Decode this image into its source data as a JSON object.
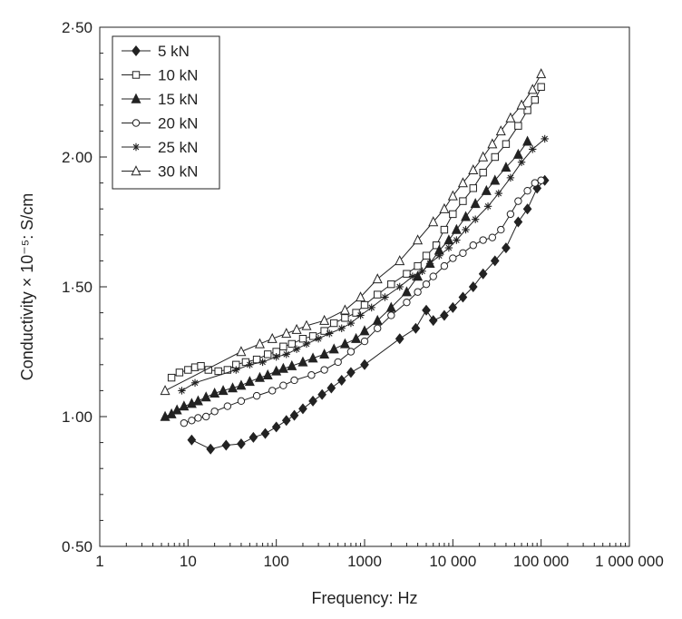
{
  "chart_data": {
    "type": "line",
    "xlabel": "Frequency: Hz",
    "ylabel": "Conductivity × 10⁻⁵: S/cm",
    "x_scale": "log",
    "xlim": [
      1,
      1000000
    ],
    "ylim": [
      0.5,
      2.5
    ],
    "x_ticks": [
      "1",
      "10",
      "100",
      "1000",
      "10 000",
      "100 000",
      "1 000 000"
    ],
    "y_ticks": [
      "0·50",
      "1·00",
      "1·50",
      "2·00",
      "2·50"
    ],
    "grid": false,
    "legend_position": "top-left",
    "series": [
      {
        "name": "5 kN",
        "marker": "diamond-filled",
        "x": [
          11,
          18,
          27,
          40,
          55,
          75,
          100,
          130,
          160,
          200,
          260,
          330,
          420,
          550,
          700,
          1000,
          2500,
          3800,
          5000,
          6000,
          8000,
          10000,
          13000,
          17000,
          22000,
          30000,
          40000,
          55000,
          70000,
          90000,
          110000
        ],
        "y": [
          0.91,
          0.875,
          0.89,
          0.895,
          0.92,
          0.935,
          0.96,
          0.985,
          1.005,
          1.03,
          1.06,
          1.085,
          1.11,
          1.14,
          1.17,
          1.2,
          1.3,
          1.34,
          1.41,
          1.37,
          1.39,
          1.42,
          1.46,
          1.5,
          1.55,
          1.6,
          1.65,
          1.75,
          1.8,
          1.88,
          1.91
        ]
      },
      {
        "name": "10 kN",
        "marker": "square-open",
        "x": [
          6.5,
          8,
          10,
          12,
          14,
          17,
          22,
          28,
          35,
          45,
          60,
          80,
          100,
          120,
          150,
          200,
          260,
          350,
          450,
          600,
          800,
          1000,
          1400,
          2000,
          3000,
          4000,
          5000,
          6500,
          8000,
          10000,
          13000,
          17000,
          22000,
          30000,
          40000,
          55000,
          70000,
          85000,
          100000
        ],
        "y": [
          1.15,
          1.17,
          1.18,
          1.19,
          1.195,
          1.18,
          1.175,
          1.18,
          1.2,
          1.21,
          1.22,
          1.24,
          1.25,
          1.27,
          1.28,
          1.3,
          1.31,
          1.33,
          1.36,
          1.38,
          1.4,
          1.43,
          1.47,
          1.51,
          1.55,
          1.58,
          1.62,
          1.66,
          1.72,
          1.78,
          1.83,
          1.88,
          1.94,
          2.0,
          2.05,
          2.12,
          2.18,
          2.22,
          2.27
        ]
      },
      {
        "name": "15 kN",
        "marker": "triangle-filled",
        "x": [
          5.5,
          6.5,
          7.5,
          9,
          11,
          13,
          16,
          20,
          25,
          32,
          40,
          50,
          65,
          80,
          100,
          120,
          150,
          200,
          260,
          350,
          450,
          600,
          800,
          1000,
          1400,
          2000,
          3000,
          4000,
          5500,
          7000,
          9000,
          11000,
          14000,
          18000,
          24000,
          30000,
          40000,
          55000,
          70000
        ],
        "y": [
          1.0,
          1.01,
          1.025,
          1.04,
          1.05,
          1.06,
          1.075,
          1.09,
          1.1,
          1.11,
          1.12,
          1.135,
          1.15,
          1.16,
          1.175,
          1.185,
          1.195,
          1.21,
          1.225,
          1.24,
          1.26,
          1.28,
          1.3,
          1.33,
          1.37,
          1.42,
          1.48,
          1.54,
          1.59,
          1.64,
          1.68,
          1.72,
          1.77,
          1.82,
          1.87,
          1.91,
          1.96,
          2.01,
          2.06
        ]
      },
      {
        "name": "20 kN",
        "marker": "circle-open",
        "x": [
          9,
          11,
          13,
          16,
          20,
          28,
          40,
          60,
          90,
          120,
          160,
          250,
          350,
          500,
          700,
          1000,
          1400,
          2000,
          3000,
          4000,
          5000,
          6000,
          8000,
          10000,
          13000,
          17000,
          22000,
          28000,
          35000,
          45000,
          55000,
          70000,
          85000,
          100000
        ],
        "y": [
          0.975,
          0.985,
          0.995,
          1.0,
          1.02,
          1.04,
          1.06,
          1.08,
          1.1,
          1.12,
          1.14,
          1.16,
          1.18,
          1.21,
          1.25,
          1.29,
          1.34,
          1.39,
          1.44,
          1.48,
          1.51,
          1.54,
          1.58,
          1.61,
          1.63,
          1.66,
          1.68,
          1.69,
          1.72,
          1.78,
          1.83,
          1.87,
          1.9,
          1.91
        ]
      },
      {
        "name": "25 kN",
        "marker": "asterisk",
        "x": [
          8.5,
          12,
          35,
          50,
          70,
          100,
          130,
          170,
          220,
          300,
          400,
          550,
          700,
          900,
          1200,
          1700,
          2500,
          3500,
          4500,
          5500,
          7000,
          9000,
          11000,
          14000,
          18000,
          25000,
          33000,
          45000,
          60000,
          80000,
          110000
        ],
        "y": [
          1.1,
          1.13,
          1.18,
          1.2,
          1.21,
          1.23,
          1.24,
          1.26,
          1.28,
          1.3,
          1.32,
          1.34,
          1.36,
          1.39,
          1.42,
          1.46,
          1.5,
          1.54,
          1.56,
          1.59,
          1.62,
          1.65,
          1.68,
          1.72,
          1.76,
          1.81,
          1.86,
          1.92,
          1.98,
          2.03,
          2.07
        ]
      },
      {
        "name": "30 kN",
        "marker": "triangle-open",
        "x": [
          5.5,
          40,
          65,
          90,
          130,
          170,
          220,
          350,
          600,
          900,
          1400,
          2500,
          4000,
          6000,
          8000,
          10000,
          13000,
          17000,
          22000,
          28000,
          35000,
          45000,
          60000,
          80000,
          100000
        ],
        "y": [
          1.1,
          1.25,
          1.28,
          1.3,
          1.32,
          1.335,
          1.35,
          1.37,
          1.41,
          1.46,
          1.53,
          1.6,
          1.68,
          1.75,
          1.8,
          1.85,
          1.9,
          1.95,
          2.0,
          2.05,
          2.1,
          2.15,
          2.2,
          2.26,
          2.32
        ]
      }
    ]
  }
}
